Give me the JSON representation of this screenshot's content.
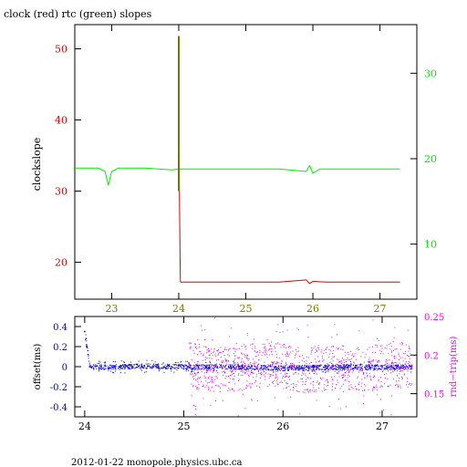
{
  "colors": {
    "red": "#dd0000",
    "green": "#00ee00",
    "blue": "#0000cc",
    "magenta": "#ee00ee",
    "olive": "#777700",
    "black": "#000000"
  },
  "footer": "2012-01-22 monopole.physics.ubc.ca",
  "chart_data": [
    {
      "type": "line",
      "title": "clock (red) rtc (green) slopes",
      "xlabel": "",
      "ylabel": "clockslope",
      "y2label": "",
      "xlim": [
        22.45,
        27.55
      ],
      "ylim": [
        14.8,
        53.4
      ],
      "y2lim": [
        3.56,
        35.69
      ],
      "xticks": [
        "23",
        "24",
        "25",
        "26",
        "27"
      ],
      "yticks": [
        "20",
        "30",
        "40",
        "50"
      ],
      "y2ticks": [
        "10",
        "20",
        "30"
      ],
      "grid": false,
      "series": [
        {
          "color": "red",
          "axis": "left",
          "x": [
            24.0,
            24.01,
            24.02,
            24.025,
            24.03,
            24.05,
            24.5,
            25.0,
            25.5,
            25.9,
            25.95,
            26.0,
            26.2,
            26.5,
            27.0,
            27.3
          ],
          "y": [
            50.8,
            30.0,
            20.8,
            17.3,
            17.2,
            17.2,
            17.2,
            17.2,
            17.2,
            17.5,
            17.0,
            17.3,
            17.2,
            17.2,
            17.2,
            17.2
          ]
        },
        {
          "color": "green",
          "axis": "right",
          "x": [
            22.45,
            22.8,
            22.9,
            22.95,
            23.0,
            23.1,
            23.2,
            23.5,
            23.9,
            24.0,
            24.05,
            24.5,
            25.0,
            25.5,
            25.9,
            25.95,
            26.0,
            26.1,
            26.5,
            27.0,
            27.3
          ],
          "y": [
            18.9,
            18.9,
            18.5,
            16.9,
            18.5,
            18.9,
            18.9,
            18.9,
            18.7,
            18.8,
            18.8,
            18.8,
            18.8,
            18.8,
            18.5,
            19.2,
            18.3,
            18.8,
            18.8,
            18.8,
            18.8
          ]
        },
        {
          "color": "olive",
          "axis": "left",
          "x": [
            24.0,
            24.0
          ],
          "y": [
            30.0,
            51.8
          ]
        }
      ]
    },
    {
      "type": "scatter",
      "title": "",
      "xlabel": "",
      "ylabel": "offset(ms)",
      "y2label": "rnd−trip(ms)",
      "xlim": [
        23.9,
        27.35
      ],
      "ylim": [
        -0.5,
        0.5
      ],
      "y2lim": [
        0.12,
        0.25
      ],
      "xticks": [
        "24",
        "25",
        "26",
        "27"
      ],
      "yticks": [
        "-0.4",
        "-0.2",
        "0",
        "0.2",
        "0.4"
      ],
      "y2ticks": [
        "0.15",
        "0.2",
        "0.25"
      ],
      "grid": false,
      "series": [
        {
          "color": "blue",
          "axis": "left",
          "x": [
            24.0,
            24.02,
            24.05,
            24.3,
            24.6,
            25.0,
            25.5,
            26.0,
            26.5,
            27.0,
            27.3
          ],
          "y": [
            0.35,
            0.2,
            0.0,
            0.0,
            0.01,
            0.0,
            0.0,
            -0.01,
            0.0,
            0.0,
            0.0
          ]
        },
        {
          "color": "magenta",
          "axis": "right",
          "x": [
            25.05,
            25.3,
            25.6,
            25.9,
            26.2,
            26.5,
            26.8,
            27.1,
            27.3
          ],
          "y": [
            0.19,
            0.18,
            0.185,
            0.19,
            0.18,
            0.185,
            0.18,
            0.19,
            0.185
          ]
        }
      ]
    }
  ]
}
